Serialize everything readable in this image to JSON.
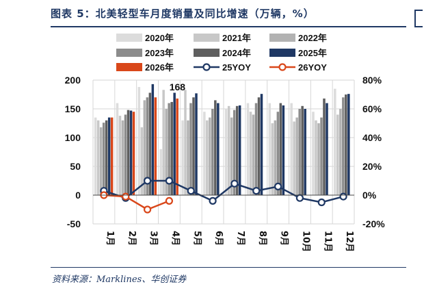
{
  "header": {
    "title": "图表 5：北美轻型车月度销量及同比增速（万辆，%）"
  },
  "footer": {
    "source": "资料来源：Marklines、华创证券"
  },
  "chart_data": {
    "type": "bar",
    "categories": [
      "1月",
      "2月",
      "3月",
      "4月",
      "5月",
      "6月",
      "7月",
      "8月",
      "9月",
      "10月",
      "11月",
      "12月"
    ],
    "y_left": {
      "ticks": [
        "-50",
        "0",
        "50",
        "100",
        "150",
        "200"
      ],
      "ylim": [
        -50,
        200
      ]
    },
    "y_right": {
      "ticks": [
        "-20%",
        "0%",
        "20%",
        "40%",
        "60%",
        "80%"
      ],
      "ylim": [
        -20,
        80
      ]
    },
    "grid": true,
    "legend_position": "top",
    "series": [
      {
        "name": "2020年",
        "kind": "bar",
        "axis": "left",
        "color": "#dcdcdc",
        "values": [
          135,
          160,
          188,
          80,
          130,
          145,
          150,
          160,
          160,
          160,
          145,
          185
        ]
      },
      {
        "name": "2021年",
        "kind": "bar",
        "axis": "left",
        "color": "#c8c8c8",
        "values": [
          130,
          138,
          118,
          183,
          183,
          130,
          155,
          145,
          125,
          128,
          130,
          140
        ]
      },
      {
        "name": "2022年",
        "kind": "bar",
        "axis": "left",
        "color": "#b2b2b2",
        "values": [
          118,
          130,
          165,
          150,
          130,
          135,
          135,
          140,
          130,
          135,
          125,
          150
        ]
      },
      {
        "name": "2023年",
        "kind": "bar",
        "axis": "left",
        "color": "#8c8c8c",
        "values": [
          126,
          140,
          170,
          160,
          160,
          150,
          148,
          160,
          145,
          150,
          135,
          170
        ]
      },
      {
        "name": "2024年",
        "kind": "bar",
        "axis": "left",
        "color": "#5f5f5f",
        "values": [
          130,
          148,
          178,
          162,
          170,
          165,
          155,
          170,
          160,
          155,
          168,
          175
        ]
      },
      {
        "name": "2025年",
        "kind": "bar",
        "axis": "left",
        "color": "#1f3864",
        "values": [
          135,
          147,
          193,
          178,
          177,
          160,
          156,
          176,
          156,
          150,
          160,
          176
        ]
      },
      {
        "name": "2026年",
        "kind": "bar",
        "axis": "left",
        "color": "#d9471a",
        "values": [
          135,
          145,
          170,
          168,
          null,
          null,
          null,
          null,
          null,
          null,
          null,
          null
        ]
      },
      {
        "name": "25YOY",
        "kind": "line",
        "axis": "right",
        "color": "#1f3864",
        "values": [
          3,
          -2,
          10,
          10,
          3,
          -4,
          8,
          3,
          6,
          -2,
          -5,
          -1
        ]
      },
      {
        "name": "26YOY",
        "kind": "line",
        "axis": "right",
        "color": "#d9471a",
        "values": [
          0,
          -1,
          -10,
          -4,
          null,
          null,
          null,
          null,
          null,
          null,
          null,
          null
        ]
      }
    ],
    "annotations": [
      {
        "category": "4月",
        "series": "2026年",
        "text": "168"
      }
    ]
  }
}
